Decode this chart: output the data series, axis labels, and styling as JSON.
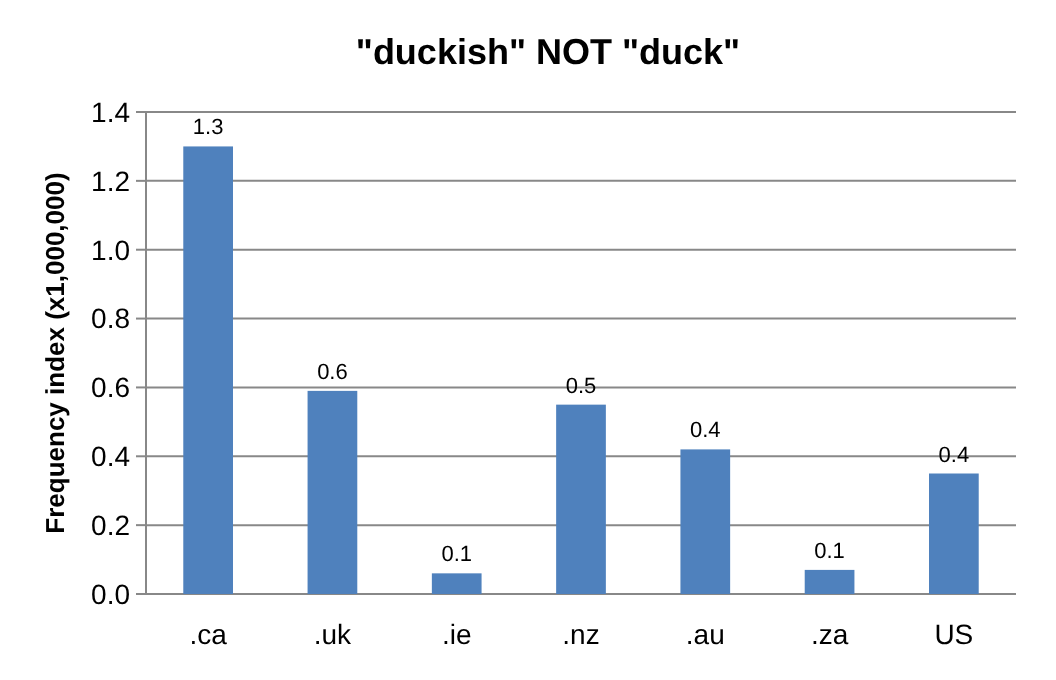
{
  "chart_data": {
    "type": "bar",
    "title": "\"duckish\" NOT \"duck\"",
    "ylabel": "Frequency index (x1,000,000)",
    "categories": [
      ".ca",
      ".uk",
      ".ie",
      ".nz",
      ".au",
      ".za",
      "US"
    ],
    "values": [
      1.3,
      0.59,
      0.06,
      0.55,
      0.42,
      0.07,
      0.35
    ],
    "value_labels": [
      "1.3",
      "0.6",
      "0.1",
      "0.5",
      "0.4",
      "0.1",
      "0.4"
    ],
    "color": "#4f81bd",
    "ylim": [
      0,
      1.4
    ],
    "yticks": [
      {
        "value": 0,
        "label": "0.0"
      },
      {
        "value": 0.2,
        "label": "0.2"
      },
      {
        "value": 0.4,
        "label": "0.4"
      },
      {
        "value": 0.6,
        "label": "0.6"
      },
      {
        "value": 0.8,
        "label": "0.8"
      },
      {
        "value": 1,
        "label": "1.0"
      },
      {
        "value": 1.2,
        "label": "1.2"
      },
      {
        "value": 1.4,
        "label": "1.4"
      }
    ],
    "grid": "y"
  }
}
